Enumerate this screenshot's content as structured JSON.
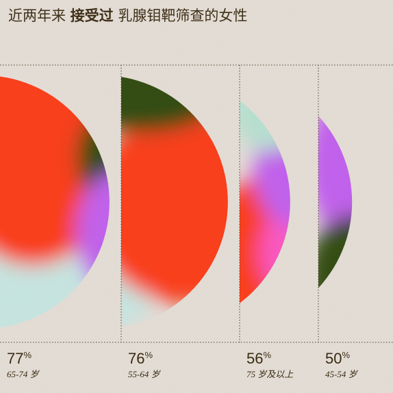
{
  "chart_data": {
    "type": "circle-segment",
    "title_parts": [
      "近两年来 ",
      "接受过",
      " 乳腺钼靶筛查的女性"
    ],
    "categories": [
      "65-74 岁",
      "55-64 岁",
      "75 岁及以上",
      "45-54 岁"
    ],
    "values": [
      77,
      76,
      56,
      50
    ],
    "unit": "%"
  }
}
